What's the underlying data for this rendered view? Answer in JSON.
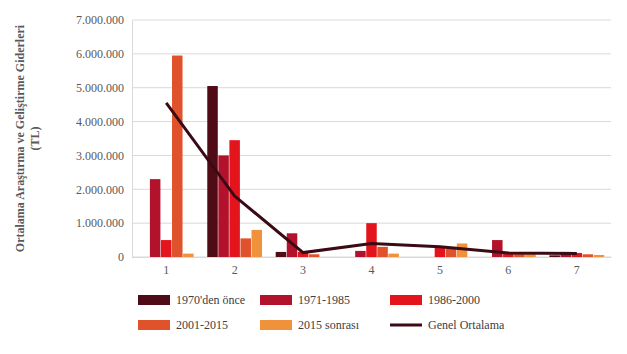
{
  "chart_data": {
    "type": "bar",
    "y_label": "Ortalama Araştırma ve Geliştirme Giderleri (TL)",
    "categories": [
      "1",
      "2",
      "3",
      "4",
      "5",
      "6",
      "7"
    ],
    "series": [
      {
        "name": "1970'den önce",
        "color": "#4f0b16",
        "values": [
          0,
          5050000,
          150000,
          0,
          0,
          0,
          50000
        ]
      },
      {
        "name": "1971-1985",
        "color": "#b3122c",
        "values": [
          2300000,
          3000000,
          700000,
          180000,
          0,
          500000,
          150000
        ]
      },
      {
        "name": "1986-2000",
        "color": "#e3141c",
        "values": [
          500000,
          3450000,
          150000,
          1000000,
          300000,
          120000,
          120000
        ]
      },
      {
        "name": "2001-2015",
        "color": "#e0522b",
        "values": [
          5950000,
          550000,
          80000,
          300000,
          280000,
          100000,
          80000
        ]
      },
      {
        "name": "2015 sonrası",
        "color": "#ef923b",
        "values": [
          100000,
          800000,
          0,
          100000,
          400000,
          100000,
          60000
        ]
      },
      {
        "name": "Genel Ortalama",
        "type": "line",
        "color": "#3b0a14",
        "values": [
          4550000,
          1800000,
          130000,
          400000,
          300000,
          120000,
          100000
        ]
      }
    ],
    "ylim": [
      0,
      7000000
    ],
    "yticks": [
      0,
      {
        "value": 1000000,
        "label": "1.000.000"
      },
      {
        "value": 2000000,
        "label": "2.000.000"
      },
      {
        "value": 3000000,
        "label": "3.000.000"
      },
      {
        "value": 4000000,
        "label": "4.000.000"
      },
      {
        "value": 5000000,
        "label": "5.000.000"
      },
      {
        "value": 6000000,
        "label": "6.000.000"
      },
      {
        "value": 7000000,
        "label": "7.000.000"
      }
    ],
    "grid": true,
    "legend": "bottom"
  }
}
